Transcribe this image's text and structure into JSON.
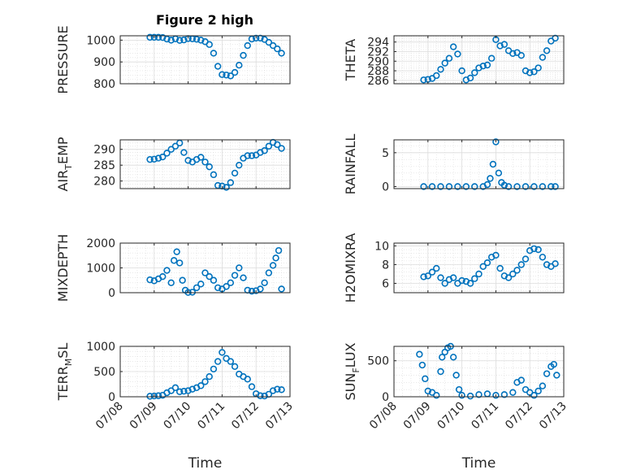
{
  "figure": {
    "title": "Figure 2 high",
    "marker_color": "#0072BD",
    "axis_color": "#262626",
    "grid_color": "#dcdcdc"
  },
  "chart_data": [
    {
      "type": "scatter",
      "ylabel": "PRESSURE",
      "ylabel_sub": [],
      "xlabel": "",
      "title": "Figure 2 high",
      "xlim": [
        "2019-07-08",
        "2019-07-13"
      ],
      "xticks": [],
      "ylim": [
        800,
        1020
      ],
      "yticks": [
        800,
        900,
        1000
      ],
      "grid": true,
      "points": {
        "x": [
          "2019-07-08T21:00",
          "2019-07-09T00:00",
          "2019-07-09T03:00",
          "2019-07-09T06:00",
          "2019-07-09T09:00",
          "2019-07-09T12:00",
          "2019-07-09T15:00",
          "2019-07-09T18:00",
          "2019-07-09T21:00",
          "2019-07-10T00:00",
          "2019-07-10T03:00",
          "2019-07-10T06:00",
          "2019-07-10T09:00",
          "2019-07-10T12:00",
          "2019-07-10T15:00",
          "2019-07-10T18:00",
          "2019-07-10T21:00",
          "2019-07-11T00:00",
          "2019-07-11T03:00",
          "2019-07-11T06:00",
          "2019-07-11T09:00",
          "2019-07-11T12:00",
          "2019-07-11T15:00",
          "2019-07-11T18:00",
          "2019-07-11T21:00",
          "2019-07-12T00:00",
          "2019-07-12T03:00",
          "2019-07-12T06:00",
          "2019-07-12T09:00",
          "2019-07-12T12:00",
          "2019-07-12T15:00",
          "2019-07-12T18:00"
        ],
        "y": [
          1013,
          1013,
          1013,
          1012,
          1005,
          1000,
          1006,
          999,
          1001,
          1007,
          1006,
          1004,
          1000,
          993,
          980,
          940,
          880,
          842,
          840,
          836,
          852,
          885,
          930,
          975,
          1005,
          1009,
          1009,
          1003,
          990,
          975,
          960,
          940
        ]
      }
    },
    {
      "type": "scatter",
      "ylabel": "THETA",
      "ylabel_sub": [],
      "xlabel": "",
      "xlim": [
        "2019-07-08",
        "2019-07-13"
      ],
      "xticks": [],
      "ylim": [
        285.3,
        295.3
      ],
      "yticks": [
        286,
        288,
        290,
        292,
        294
      ],
      "grid": true,
      "points": {
        "x": [
          "2019-07-08T21:00",
          "2019-07-09T00:00",
          "2019-07-09T03:00",
          "2019-07-09T06:00",
          "2019-07-09T09:00",
          "2019-07-09T12:00",
          "2019-07-09T15:00",
          "2019-07-09T18:00",
          "2019-07-09T21:00",
          "2019-07-10T00:00",
          "2019-07-10T03:00",
          "2019-07-10T06:00",
          "2019-07-10T09:00",
          "2019-07-10T12:00",
          "2019-07-10T15:00",
          "2019-07-10T18:00",
          "2019-07-10T21:00",
          "2019-07-11T00:00",
          "2019-07-11T03:00",
          "2019-07-11T06:00",
          "2019-07-11T09:00",
          "2019-07-11T12:00",
          "2019-07-11T15:00",
          "2019-07-11T18:00",
          "2019-07-11T21:00",
          "2019-07-12T00:00",
          "2019-07-12T03:00",
          "2019-07-12T06:00",
          "2019-07-12T09:00",
          "2019-07-12T12:00",
          "2019-07-12T15:00",
          "2019-07-12T18:00"
        ],
        "y": [
          286.1,
          286.2,
          286.4,
          287.0,
          288.3,
          289.6,
          290.6,
          293.0,
          291.5,
          288.0,
          286.1,
          286.5,
          287.6,
          288.6,
          289.0,
          289.2,
          290.6,
          294.5,
          293.2,
          293.5,
          292.2,
          291.6,
          291.8,
          291.2,
          288.0,
          287.6,
          287.8,
          288.6,
          290.8,
          292.2,
          294.2,
          294.8
        ]
      }
    },
    {
      "type": "scatter",
      "ylabel": "AIR",
      "ylabel_sub": [
        "T",
        "EMP"
      ],
      "xlabel": "",
      "xlim": [
        "2019-07-08",
        "2019-07-13"
      ],
      "xticks": [],
      "ylim": [
        277.6,
        293.0
      ],
      "yticks": [
        280,
        285,
        290
      ],
      "grid": true,
      "points": {
        "x": [
          "2019-07-08T21:00",
          "2019-07-09T00:00",
          "2019-07-09T03:00",
          "2019-07-09T06:00",
          "2019-07-09T09:00",
          "2019-07-09T12:00",
          "2019-07-09T15:00",
          "2019-07-09T18:00",
          "2019-07-09T21:00",
          "2019-07-10T00:00",
          "2019-07-10T03:00",
          "2019-07-10T06:00",
          "2019-07-10T09:00",
          "2019-07-10T12:00",
          "2019-07-10T15:00",
          "2019-07-10T18:00",
          "2019-07-10T21:00",
          "2019-07-11T00:00",
          "2019-07-11T03:00",
          "2019-07-11T06:00",
          "2019-07-11T09:00",
          "2019-07-11T12:00",
          "2019-07-11T15:00",
          "2019-07-11T18:00",
          "2019-07-11T21:00",
          "2019-07-12T00:00",
          "2019-07-12T03:00",
          "2019-07-12T06:00",
          "2019-07-12T09:00",
          "2019-07-12T12:00",
          "2019-07-12T15:00",
          "2019-07-12T18:00"
        ],
        "y": [
          286.8,
          286.9,
          287.2,
          287.6,
          288.8,
          290.0,
          291.0,
          292.0,
          289.0,
          286.5,
          286.0,
          286.8,
          287.5,
          286.0,
          284.5,
          282.0,
          278.6,
          278.4,
          278.0,
          279.5,
          282.5,
          285.0,
          287.2,
          288.0,
          288.0,
          288.2,
          289.0,
          289.6,
          291.0,
          292.2,
          291.5,
          290.3
        ]
      }
    },
    {
      "type": "scatter",
      "ylabel": "RAINFALL",
      "ylabel_sub": [],
      "xlabel": "",
      "xlim": [
        "2019-07-08",
        "2019-07-13"
      ],
      "xticks": [],
      "ylim": [
        -0.3,
        6.9
      ],
      "yticks": [
        0,
        5
      ],
      "grid": true,
      "points": {
        "x": [
          "2019-07-08T21:00",
          "2019-07-09T03:00",
          "2019-07-09T09:00",
          "2019-07-09T15:00",
          "2019-07-09T21:00",
          "2019-07-10T03:00",
          "2019-07-10T09:00",
          "2019-07-10T15:00",
          "2019-07-10T18:00",
          "2019-07-10T20:00",
          "2019-07-10T22:00",
          "2019-07-11T00:00",
          "2019-07-11T02:00",
          "2019-07-11T04:00",
          "2019-07-11T06:00",
          "2019-07-11T09:00",
          "2019-07-11T15:00",
          "2019-07-11T21:00",
          "2019-07-12T03:00",
          "2019-07-12T09:00",
          "2019-07-12T15:00",
          "2019-07-12T18:00"
        ],
        "y": [
          0,
          0,
          0,
          0,
          0,
          0,
          0,
          0,
          0.3,
          1.2,
          3.3,
          6.6,
          2.0,
          0.6,
          0.2,
          0,
          0,
          0,
          0,
          0,
          0,
          0
        ]
      }
    },
    {
      "type": "scatter",
      "ylabel": "MIXDEPTH",
      "ylabel_sub": [],
      "xlabel": "",
      "xlim": [
        "2019-07-08",
        "2019-07-13"
      ],
      "xticks": [],
      "ylim": [
        0,
        2000
      ],
      "yticks": [
        0,
        1000,
        2000
      ],
      "grid": true,
      "points": {
        "x": [
          "2019-07-08T21:00",
          "2019-07-09T00:00",
          "2019-07-09T03:00",
          "2019-07-09T06:00",
          "2019-07-09T09:00",
          "2019-07-09T12:00",
          "2019-07-09T14:00",
          "2019-07-09T16:00",
          "2019-07-09T18:00",
          "2019-07-09T20:00",
          "2019-07-09T22:00",
          "2019-07-10T00:00",
          "2019-07-10T03:00",
          "2019-07-10T06:00",
          "2019-07-10T09:00",
          "2019-07-10T12:00",
          "2019-07-10T15:00",
          "2019-07-10T18:00",
          "2019-07-10T21:00",
          "2019-07-11T00:00",
          "2019-07-11T03:00",
          "2019-07-11T06:00",
          "2019-07-11T09:00",
          "2019-07-11T12:00",
          "2019-07-11T15:00",
          "2019-07-11T18:00",
          "2019-07-11T21:00",
          "2019-07-12T00:00",
          "2019-07-12T03:00",
          "2019-07-12T06:00",
          "2019-07-12T09:00",
          "2019-07-12T12:00",
          "2019-07-12T14:00",
          "2019-07-12T16:00",
          "2019-07-12T18:00"
        ],
        "y": [
          520,
          480,
          560,
          650,
          900,
          400,
          1300,
          1650,
          1200,
          500,
          100,
          10,
          20,
          200,
          350,
          800,
          650,
          500,
          200,
          150,
          250,
          400,
          700,
          1000,
          600,
          100,
          60,
          80,
          150,
          400,
          800,
          1100,
          1400,
          1700,
          150
        ]
      }
    },
    {
      "type": "scatter",
      "ylabel": "H2OMIXRA",
      "ylabel_sub": [],
      "xlabel": "",
      "xlim": [
        "2019-07-08",
        "2019-07-13"
      ],
      "xticks": [],
      "ylim": [
        5,
        10.3
      ],
      "yticks": [
        6,
        8,
        10
      ],
      "grid": true,
      "points": {
        "x": [
          "2019-07-08T21:00",
          "2019-07-09T00:00",
          "2019-07-09T03:00",
          "2019-07-09T06:00",
          "2019-07-09T09:00",
          "2019-07-09T12:00",
          "2019-07-09T15:00",
          "2019-07-09T18:00",
          "2019-07-09T21:00",
          "2019-07-10T00:00",
          "2019-07-10T03:00",
          "2019-07-10T06:00",
          "2019-07-10T09:00",
          "2019-07-10T12:00",
          "2019-07-10T15:00",
          "2019-07-10T18:00",
          "2019-07-10T21:00",
          "2019-07-11T00:00",
          "2019-07-11T03:00",
          "2019-07-11T06:00",
          "2019-07-11T09:00",
          "2019-07-11T12:00",
          "2019-07-11T15:00",
          "2019-07-11T18:00",
          "2019-07-11T21:00",
          "2019-07-12T00:00",
          "2019-07-12T03:00",
          "2019-07-12T06:00",
          "2019-07-12T09:00",
          "2019-07-12T12:00",
          "2019-07-12T15:00",
          "2019-07-12T18:00"
        ],
        "y": [
          6.7,
          6.8,
          7.2,
          7.6,
          6.6,
          6.0,
          6.4,
          6.6,
          6.0,
          6.3,
          6.2,
          6.0,
          6.5,
          7.0,
          7.8,
          8.2,
          8.8,
          9.0,
          7.6,
          6.8,
          6.6,
          7.0,
          7.4,
          8.0,
          8.6,
          9.5,
          9.7,
          9.6,
          8.8,
          8.0,
          7.8,
          8.1
        ]
      }
    },
    {
      "type": "scatter",
      "ylabel": "TERR",
      "ylabel_sub": [
        "M",
        "SL"
      ],
      "xlabel": "Time",
      "xlim": [
        "2019-07-08",
        "2019-07-13"
      ],
      "xticks": [
        "07/08",
        "07/09",
        "07/10",
        "07/11",
        "07/12",
        "07/13"
      ],
      "ylim": [
        0,
        1000
      ],
      "yticks": [
        0,
        500,
        1000
      ],
      "grid": true,
      "points": {
        "x": [
          "2019-07-08T21:00",
          "2019-07-09T00:00",
          "2019-07-09T03:00",
          "2019-07-09T06:00",
          "2019-07-09T09:00",
          "2019-07-09T12:00",
          "2019-07-09T15:00",
          "2019-07-09T18:00",
          "2019-07-09T21:00",
          "2019-07-10T00:00",
          "2019-07-10T03:00",
          "2019-07-10T06:00",
          "2019-07-10T09:00",
          "2019-07-10T12:00",
          "2019-07-10T15:00",
          "2019-07-10T18:00",
          "2019-07-10T21:00",
          "2019-07-11T00:00",
          "2019-07-11T03:00",
          "2019-07-11T06:00",
          "2019-07-11T09:00",
          "2019-07-11T12:00",
          "2019-07-11T15:00",
          "2019-07-11T18:00",
          "2019-07-11T21:00",
          "2019-07-12T00:00",
          "2019-07-12T03:00",
          "2019-07-12T06:00",
          "2019-07-12T09:00",
          "2019-07-12T12:00",
          "2019-07-12T15:00",
          "2019-07-12T18:00"
        ],
        "y": [
          10,
          15,
          20,
          30,
          80,
          120,
          180,
          100,
          110,
          120,
          150,
          180,
          220,
          300,
          400,
          550,
          700,
          880,
          760,
          700,
          600,
          450,
          400,
          350,
          200,
          60,
          20,
          15,
          50,
          120,
          150,
          140
        ]
      }
    },
    {
      "type": "scatter",
      "ylabel": "SUN",
      "ylabel_sub": [
        "F",
        "LUX"
      ],
      "xlabel": "Time",
      "xlim": [
        "2019-07-08",
        "2019-07-13"
      ],
      "xticks": [
        "07/08",
        "07/09",
        "07/10",
        "07/11",
        "07/12",
        "07/13"
      ],
      "ylim": [
        0,
        700
      ],
      "yticks": [
        0,
        500
      ],
      "grid": true,
      "points": {
        "x": [
          "2019-07-08T18:00",
          "2019-07-08T20:00",
          "2019-07-08T22:00",
          "2019-07-09T00:00",
          "2019-07-09T03:00",
          "2019-07-09T06:00",
          "2019-07-09T09:00",
          "2019-07-09T10:00",
          "2019-07-09T12:00",
          "2019-07-09T14:00",
          "2019-07-09T16:00",
          "2019-07-09T18:00",
          "2019-07-09T20:00",
          "2019-07-09T22:00",
          "2019-07-10T00:00",
          "2019-07-10T06:00",
          "2019-07-10T12:00",
          "2019-07-10T18:00",
          "2019-07-11T00:00",
          "2019-07-11T06:00",
          "2019-07-11T12:00",
          "2019-07-11T15:00",
          "2019-07-11T18:00",
          "2019-07-11T21:00",
          "2019-07-12T00:00",
          "2019-07-12T03:00",
          "2019-07-12T06:00",
          "2019-07-12T09:00",
          "2019-07-12T12:00",
          "2019-07-12T15:00",
          "2019-07-12T17:00",
          "2019-07-12T19:00"
        ],
        "y": [
          590,
          440,
          250,
          80,
          60,
          20,
          350,
          550,
          620,
          680,
          700,
          550,
          300,
          100,
          20,
          10,
          30,
          40,
          20,
          30,
          60,
          200,
          230,
          100,
          60,
          20,
          80,
          150,
          320,
          420,
          450,
          300
        ]
      }
    }
  ]
}
